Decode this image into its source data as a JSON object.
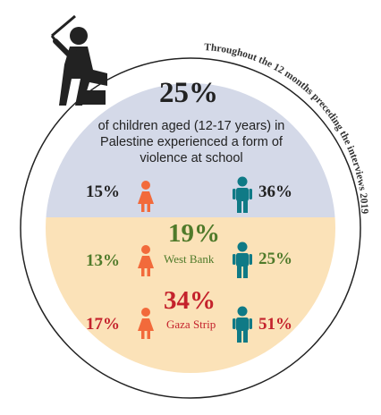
{
  "header": {
    "curved_note": "Throughout the 12 months preceding the interviews 2019"
  },
  "palestine": {
    "percent": "25%",
    "description_lines": [
      "of children aged (12-17 years) in",
      "Palestine experienced a form of",
      "violence at school"
    ],
    "girls": "15%",
    "boys": "36%"
  },
  "west_bank": {
    "percent": "19%",
    "label": "West Bank",
    "girls": "13%",
    "boys": "25%"
  },
  "gaza_strip": {
    "percent": "34%",
    "label": "Gaza Strip",
    "girls": "17%",
    "boys": "51%"
  },
  "colors": {
    "top_fill": "#d4d9e8",
    "bottom_fill": "#fbe2b8",
    "girl": "#f26a3b",
    "boy": "#0f7a86",
    "west_bank_text": "#4f7a2a",
    "gaza_text": "#c4222c",
    "dark_text": "#222222",
    "outline": "#222222"
  },
  "icons": [
    "violence-figure-icon",
    "girl-icon",
    "boy-icon"
  ]
}
